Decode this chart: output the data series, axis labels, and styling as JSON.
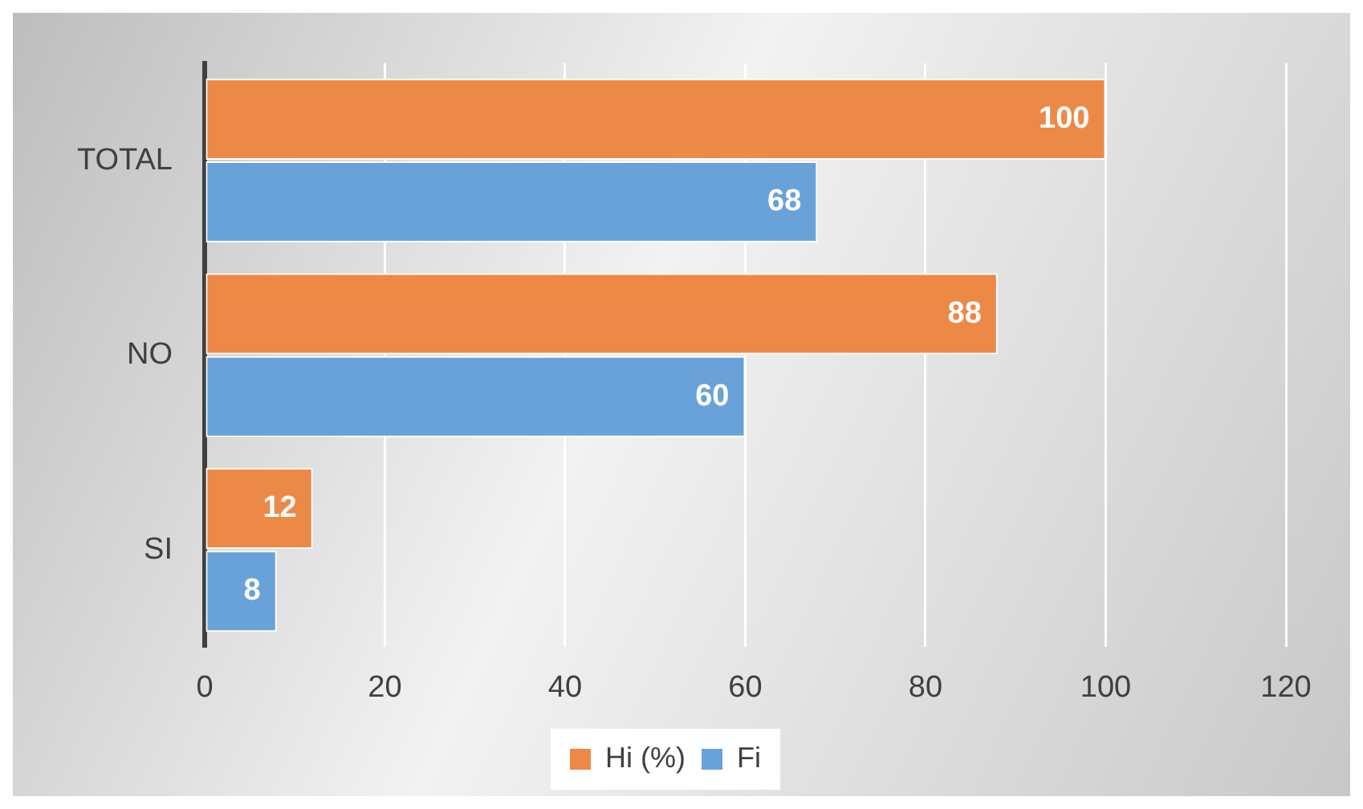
{
  "chart_data": {
    "type": "bar",
    "orientation": "horizontal",
    "categories": [
      "TOTAL",
      "NO",
      "SI"
    ],
    "series": [
      {
        "name": "Hi (%)",
        "color": "#ed8946",
        "values": [
          100,
          88,
          12
        ]
      },
      {
        "name": "Fi",
        "color": "#69a2d8",
        "values": [
          68,
          60,
          8
        ]
      }
    ],
    "xlim": [
      0,
      120
    ],
    "xticks": [
      0,
      20,
      40,
      60,
      80,
      100,
      120
    ],
    "grid": "x",
    "legend": "bottom",
    "data_labels": true
  }
}
